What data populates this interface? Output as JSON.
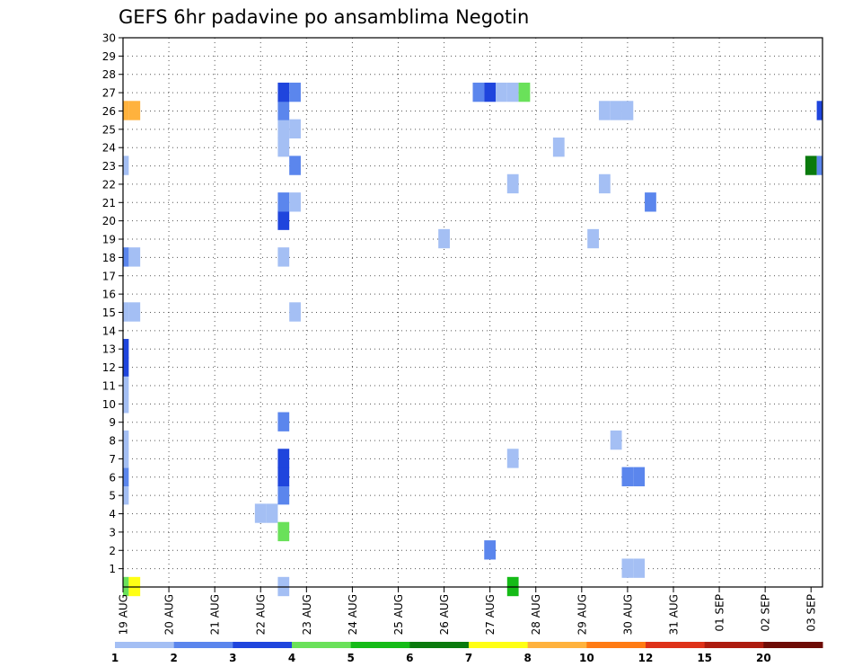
{
  "chart_data": {
    "type": "heatmap",
    "title": "GEFS 6hr padavine po ansamblima Negotin",
    "xlabel": "",
    "ylabel": "",
    "x_unit": "6-hour steps from 19 AUG 00Z",
    "x_range": [
      0,
      61
    ],
    "ylim": [
      0,
      30
    ],
    "y_ticks": [
      1,
      2,
      3,
      4,
      5,
      6,
      7,
      8,
      9,
      10,
      11,
      12,
      13,
      14,
      15,
      16,
      17,
      18,
      19,
      20,
      21,
      22,
      23,
      24,
      25,
      26,
      27,
      28,
      29,
      30
    ],
    "x_tick_labels": [
      "19 AUG",
      "20 AUG",
      "21 AUG",
      "22 AUG",
      "23 AUG",
      "24 AUG",
      "25 AUG",
      "26 AUG",
      "27 AUG",
      "28 AUG",
      "29 AUG",
      "30 AUG",
      "31 AUG",
      "01 SEP",
      "02 SEP",
      "03 SEP"
    ],
    "grid": true,
    "colorbar": {
      "labels": [
        "1",
        "2",
        "3",
        "4",
        "5",
        "6",
        "7",
        "8",
        "10",
        "12",
        "15",
        "20"
      ],
      "colors": [
        "#a4bff4",
        "#5b86ed",
        "#1f45dd",
        "#6ae15a",
        "#15bb17",
        "#0a7a0d",
        "#ffff14",
        "#ffb23d",
        "#ff7b14",
        "#de3219",
        "#ad1c0f",
        "#6e0c06"
      ]
    },
    "cells": [
      {
        "x": 0,
        "y": 0,
        "v": 4
      },
      {
        "x": 1,
        "y": 0,
        "v": 7
      },
      {
        "x": 0,
        "y": 5,
        "v": 1
      },
      {
        "x": 0,
        "y": 6,
        "v": 2
      },
      {
        "x": 0,
        "y": 7,
        "v": 1
      },
      {
        "x": 0,
        "y": 8,
        "v": 1
      },
      {
        "x": 0,
        "y": 10,
        "v": 1
      },
      {
        "x": 0,
        "y": 11,
        "v": 1
      },
      {
        "x": 0,
        "y": 12,
        "v": 3
      },
      {
        "x": 0,
        "y": 13,
        "v": 3
      },
      {
        "x": 0,
        "y": 15,
        "v": 1
      },
      {
        "x": 1,
        "y": 15,
        "v": 1
      },
      {
        "x": 0,
        "y": 18,
        "v": 2
      },
      {
        "x": 1,
        "y": 18,
        "v": 1
      },
      {
        "x": 0,
        "y": 23,
        "v": 1
      },
      {
        "x": 0,
        "y": 26,
        "v": 8
      },
      {
        "x": 1,
        "y": 26,
        "v": 8
      },
      {
        "x": 12,
        "y": 4,
        "v": 1
      },
      {
        "x": 13,
        "y": 4,
        "v": 1
      },
      {
        "x": 14,
        "y": 0,
        "v": 1
      },
      {
        "x": 14,
        "y": 3,
        "v": 4
      },
      {
        "x": 14,
        "y": 5,
        "v": 2
      },
      {
        "x": 14,
        "y": 6,
        "v": 3
      },
      {
        "x": 14,
        "y": 7,
        "v": 3
      },
      {
        "x": 14,
        "y": 9,
        "v": 2
      },
      {
        "x": 14,
        "y": 18,
        "v": 1
      },
      {
        "x": 14,
        "y": 20,
        "v": 3
      },
      {
        "x": 14,
        "y": 21,
        "v": 2
      },
      {
        "x": 14,
        "y": 24,
        "v": 1
      },
      {
        "x": 14,
        "y": 25,
        "v": 1
      },
      {
        "x": 14,
        "y": 26,
        "v": 2
      },
      {
        "x": 14,
        "y": 27,
        "v": 3
      },
      {
        "x": 15,
        "y": 15,
        "v": 1
      },
      {
        "x": 15,
        "y": 21,
        "v": 1
      },
      {
        "x": 15,
        "y": 23,
        "v": 2
      },
      {
        "x": 15,
        "y": 25,
        "v": 1
      },
      {
        "x": 15,
        "y": 27,
        "v": 2
      },
      {
        "x": 28,
        "y": 19,
        "v": 1
      },
      {
        "x": 31,
        "y": 27,
        "v": 2
      },
      {
        "x": 32,
        "y": 27,
        "v": 3
      },
      {
        "x": 32,
        "y": 2,
        "v": 2
      },
      {
        "x": 33,
        "y": 27,
        "v": 1
      },
      {
        "x": 34,
        "y": 0,
        "v": 5
      },
      {
        "x": 34,
        "y": 7,
        "v": 1
      },
      {
        "x": 34,
        "y": 22,
        "v": 1
      },
      {
        "x": 34,
        "y": 27,
        "v": 1
      },
      {
        "x": 35,
        "y": 27,
        "v": 4
      },
      {
        "x": 38,
        "y": 24,
        "v": 1
      },
      {
        "x": 41,
        "y": 19,
        "v": 1
      },
      {
        "x": 42,
        "y": 22,
        "v": 1
      },
      {
        "x": 42,
        "y": 26,
        "v": 1
      },
      {
        "x": 43,
        "y": 26,
        "v": 1
      },
      {
        "x": 43,
        "y": 8,
        "v": 1
      },
      {
        "x": 44,
        "y": 26,
        "v": 1
      },
      {
        "x": 44,
        "y": 1,
        "v": 1
      },
      {
        "x": 45,
        "y": 1,
        "v": 1
      },
      {
        "x": 44,
        "y": 6,
        "v": 2
      },
      {
        "x": 45,
        "y": 6,
        "v": 2
      },
      {
        "x": 46,
        "y": 21,
        "v": 2
      },
      {
        "x": 60,
        "y": 23,
        "v": 6
      },
      {
        "x": 61,
        "y": 23,
        "v": 2
      },
      {
        "x": 61,
        "y": 26,
        "v": 3
      }
    ]
  }
}
